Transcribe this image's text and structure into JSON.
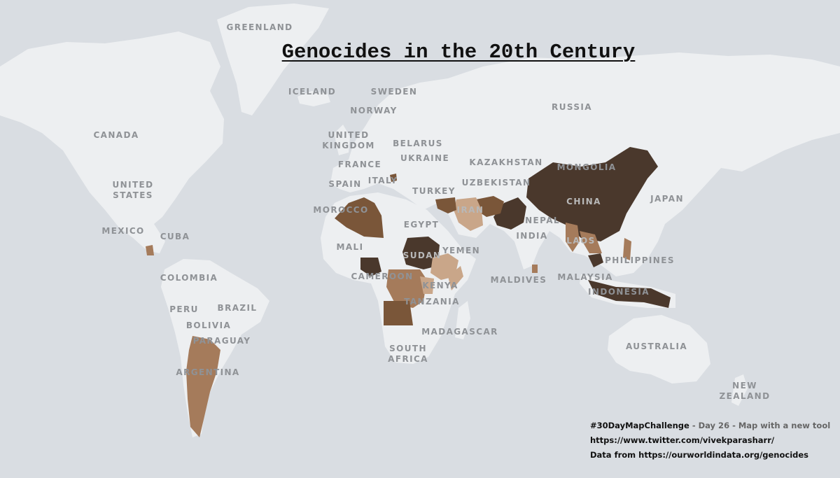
{
  "map": {
    "title": "Genocides in the 20th Century",
    "colors": {
      "ocean": "#d9dde2",
      "land": "#edeff1",
      "shade_light": "#c9a689",
      "shade_mid": "#a57b5b",
      "shade_dark": "#7a5639",
      "shade_darkest": "#4a382c"
    },
    "labels": {
      "greenland": "GREENLAND",
      "iceland": "ICELAND",
      "sweden": "SWEDEN",
      "norway": "NORWAY",
      "russia": "RUSSIA",
      "canada": "CANADA",
      "united_kingdom": "UNITED\nKINGDOM",
      "belarus": "BELARUS",
      "ukraine": "UKRAINE",
      "kazakhstan": "KAZAKHSTAN",
      "mongolia": "MONGOLIA",
      "france": "FRANCE",
      "united_states": "UNITED\nSTATES",
      "spain": "SPAIN",
      "italy": "ITALY",
      "uzbekistan": "UZBEKISTAN",
      "turkey": "TURKEY",
      "japan": "JAPAN",
      "china": "CHINA",
      "morocco": "MOROCCO",
      "iran": "IRAN",
      "mexico": "MEXICO",
      "cuba": "CUBA",
      "egypt": "EGYPT",
      "nepal": "NEPAL",
      "india": "INDIA",
      "laos": "LAOS",
      "mali": "MALI",
      "sudan": "SUDAN",
      "yemen": "YEMEN",
      "philippines": "PHILIPPINES",
      "colombia": "COLOMBIA",
      "cameroon": "CAMEROON",
      "kenya": "KENYA",
      "maldives": "MALDIVES",
      "malaysia": "MALAYSIA",
      "indonesia": "INDONESIA",
      "tanzania": "TANZANIA",
      "peru": "PERU",
      "brazil": "BRAZIL",
      "bolivia": "BOLIVIA",
      "madagascar": "MADAGASCAR",
      "paraguay": "PARAGUAY",
      "australia": "AUSTRALIA",
      "south_africa": "SOUTH\nAFRICA",
      "argentina": "ARGENTINA",
      "new_zealand": "NEW\nZEALAND"
    },
    "credits": {
      "challenge_tag": "#30DayMapChallenge",
      "challenge_sub": " - Day 26 - Map with a new tool",
      "twitter": "https://www.twitter.com/vivekparasharr/",
      "source": "Data from https://ourworldindata.org/genocides"
    }
  }
}
